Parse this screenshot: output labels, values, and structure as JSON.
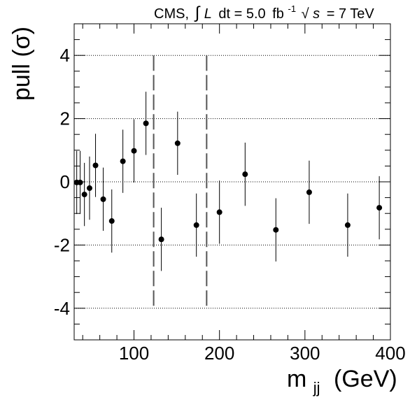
{
  "header": {
    "experiment": "CMS,",
    "integral_sign": "∫",
    "lumi_symbol": "L",
    "lumi_dt": "dt = 5.0",
    "lumi_unit": "fb",
    "lumi_exp": "-1",
    "sqrt_sign": "√",
    "energy_symbol": "s",
    "energy_value": "= 7 TeV"
  },
  "chart_data": {
    "type": "scatter",
    "title": "",
    "xlabel_main": "m",
    "xlabel_sub": "jj",
    "xlabel_unit": "(GeV)",
    "ylabel": "pull (σ)",
    "xlim": [
      30,
      400
    ],
    "ylim": [
      -5,
      5
    ],
    "x_ticks": [
      100,
      200,
      300,
      400
    ],
    "x_tick_labels": [
      "100",
      "200",
      "300",
      "400"
    ],
    "y_ticks": [
      -4,
      -2,
      0,
      2,
      4
    ],
    "y_tick_labels": [
      "-4",
      "-2",
      "0",
      "2",
      "4"
    ],
    "gridlines_y": [
      -4,
      -2,
      0,
      2,
      4
    ],
    "grid_style": "dotted horizontal at major y ticks",
    "window_lines_x": [
      123,
      185
    ],
    "window_line_range": [
      -4,
      4
    ],
    "error_bar": 1.0,
    "points": [
      {
        "x": 33,
        "y": -0.02
      },
      {
        "x": 37,
        "y": -0.02
      },
      {
        "x": 42,
        "y": -0.4
      },
      {
        "x": 48,
        "y": -0.2
      },
      {
        "x": 55,
        "y": 0.52
      },
      {
        "x": 64,
        "y": -0.55
      },
      {
        "x": 74,
        "y": -1.24
      },
      {
        "x": 87,
        "y": 0.65
      },
      {
        "x": 100,
        "y": 0.98
      },
      {
        "x": 114,
        "y": 1.85
      },
      {
        "x": 132,
        "y": -1.82
      },
      {
        "x": 151,
        "y": 1.22
      },
      {
        "x": 173,
        "y": -1.37
      },
      {
        "x": 200,
        "y": -0.96
      },
      {
        "x": 230,
        "y": 0.24
      },
      {
        "x": 266,
        "y": -1.52
      },
      {
        "x": 305,
        "y": -0.33
      },
      {
        "x": 350,
        "y": -1.37
      },
      {
        "x": 387,
        "y": -0.82
      }
    ]
  }
}
